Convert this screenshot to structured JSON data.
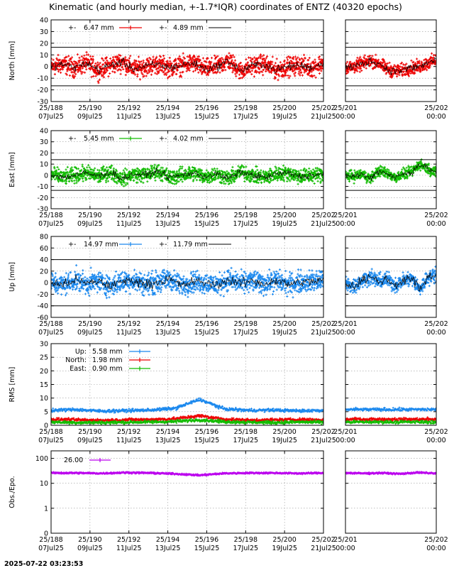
{
  "title": "Kinematic (and hourly median, +-1.7*IQR) coordinates of ENTZ (40320 epochs)",
  "timestamp": "2025-07-22 03:23:53",
  "x_ticks_main": [
    {
      "doy": "25/188",
      "date": "07Jul25"
    },
    {
      "doy": "25/190",
      "date": "09Jul25"
    },
    {
      "doy": "25/192",
      "date": "11Jul25"
    },
    {
      "doy": "25/194",
      "date": "13Jul25"
    },
    {
      "doy": "25/196",
      "date": "15Jul25"
    },
    {
      "doy": "25/198",
      "date": "17Jul25"
    },
    {
      "doy": "25/200",
      "date": "19Jul25"
    },
    {
      "doy": "25/202",
      "date": "21Jul25"
    }
  ],
  "x_ticks_zoom": [
    {
      "doy": "25/201",
      "date": "00:00"
    },
    {
      "doy": "25/202",
      "date": "00:00"
    }
  ],
  "colors": {
    "north": "#ee0000",
    "east": "#11bb00",
    "up": "#1a88ee",
    "obs": "#bb00ee",
    "median": "#000000"
  },
  "chart_data": [
    {
      "type": "scatter",
      "id": "north",
      "ylabel": "North [mm]",
      "ylim": [
        -30,
        40
      ],
      "yticks": [
        -30,
        -20,
        -10,
        0,
        10,
        20,
        30,
        40
      ],
      "iqr_lines": [
        16.5,
        -16.5
      ],
      "legend": [
        {
          "marker": "+-",
          "value": "6.47 mm"
        },
        {
          "marker": "+-",
          "value": "4.89 mm"
        }
      ],
      "series": [
        {
          "name": "kinematic",
          "spread": 6.47,
          "values": [
            0,
            2,
            -1,
            3,
            -3,
            1,
            4,
            -2,
            0,
            2,
            -1,
            1,
            3,
            -2,
            0,
            5,
            -4,
            1,
            2,
            -3,
            0,
            1,
            -1,
            3
          ]
        },
        {
          "name": "hourly median",
          "spread": 4.89
        }
      ],
      "zoom_values": [
        -1,
        0,
        2,
        5,
        3,
        -2,
        -4,
        -3,
        -1,
        0,
        3,
        6
      ]
    },
    {
      "type": "scatter",
      "id": "east",
      "ylabel": "East [mm]",
      "ylim": [
        -30,
        40
      ],
      "yticks": [
        -30,
        -20,
        -10,
        0,
        10,
        20,
        30,
        40
      ],
      "iqr_lines": [
        14,
        -13.5
      ],
      "legend": [
        {
          "marker": "+-",
          "value": "5.45 mm"
        },
        {
          "marker": "+-",
          "value": "4.02 mm"
        }
      ],
      "series": [
        {
          "name": "kinematic",
          "spread": 5.45,
          "values": [
            1,
            -2,
            0,
            2,
            -1,
            3,
            -3,
            1,
            0,
            4,
            -2,
            0,
            2,
            -1,
            1,
            -3,
            3,
            0,
            -2,
            1,
            2,
            -1,
            0,
            1
          ]
        },
        {
          "name": "hourly median",
          "spread": 4.02
        }
      ],
      "zoom_values": [
        0,
        -1,
        1,
        -3,
        4,
        2,
        -2,
        1,
        3,
        10,
        6,
        2
      ]
    },
    {
      "type": "scatter",
      "id": "up",
      "ylabel": "Up [mm]",
      "ylim": [
        -60,
        80
      ],
      "yticks": [
        -60,
        -40,
        -20,
        0,
        20,
        40,
        60,
        80
      ],
      "iqr_lines": [
        40,
        -40
      ],
      "legend": [
        {
          "marker": "+-",
          "value": "14.97 mm"
        },
        {
          "marker": "+-",
          "value": "11.79 mm"
        }
      ],
      "series": [
        {
          "name": "kinematic",
          "spread": 14.97,
          "values": [
            0,
            -4,
            5,
            -2,
            3,
            -6,
            2,
            4,
            -3,
            1,
            6,
            -5,
            2,
            0,
            -4,
            5,
            -1,
            3,
            -2,
            4,
            -3,
            1,
            2,
            5
          ]
        },
        {
          "name": "hourly median",
          "spread": 11.79
        }
      ],
      "zoom_values": [
        -2,
        -6,
        4,
        10,
        2,
        6,
        -4,
        3,
        8,
        -12,
        10,
        14
      ]
    },
    {
      "type": "scatter",
      "id": "rms",
      "ylabel": "RMS [mm]",
      "ylim": [
        0,
        30
      ],
      "yticks": [
        0,
        5,
        10,
        15,
        20,
        25,
        30
      ],
      "legend": [
        {
          "name": "Up:",
          "value": "5.58 mm"
        },
        {
          "name": "North:",
          "value": "1.98 mm"
        },
        {
          "name": "East:",
          "value": "0.90 mm"
        }
      ],
      "series": [
        {
          "name": "Up",
          "values": [
            5.5,
            5.8,
            5.2,
            5.4,
            5.6,
            6.2,
            9.5,
            6.0,
            5.5,
            5.6,
            5.3,
            5.5
          ]
        },
        {
          "name": "North",
          "values": [
            2.2,
            2.0,
            1.8,
            2.0,
            2.1,
            2.4,
            3.5,
            2.2,
            1.9,
            2.0,
            2.1,
            2.0
          ]
        },
        {
          "name": "East",
          "values": [
            1.2,
            1.0,
            1.0,
            1.1,
            1.2,
            1.4,
            2.0,
            1.3,
            1.1,
            1.0,
            1.2,
            1.1
          ]
        }
      ],
      "zoom_values": {
        "Up": 5.8,
        "North": 2.2,
        "East": 1.2
      }
    },
    {
      "type": "scatter",
      "id": "obs",
      "ylabel": "Obs./Epo.",
      "scale": "log",
      "ylim": [
        0.1,
        200
      ],
      "yticks": [
        {
          "v": 0.1,
          "label": "0"
        },
        {
          "v": 1,
          "label": "1"
        },
        {
          "v": 10,
          "label": "10"
        },
        {
          "v": 100,
          "label": "100"
        }
      ],
      "legend": [
        {
          "marker": "+-",
          "value": "26.00"
        }
      ],
      "series": [
        {
          "name": "observations",
          "values": [
            26,
            26,
            25,
            27,
            26,
            24,
            21,
            25,
            26,
            26,
            25,
            26
          ]
        }
      ],
      "zoom_values": [
        26,
        25,
        26,
        24,
        27,
        25
      ]
    }
  ]
}
